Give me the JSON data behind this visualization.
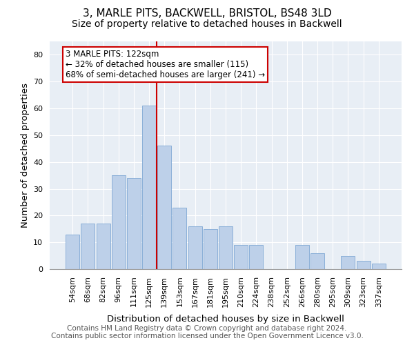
{
  "title": "3, MARLE PITS, BACKWELL, BRISTOL, BS48 3LD",
  "subtitle": "Size of property relative to detached houses in Backwell",
  "xlabel": "Distribution of detached houses by size in Backwell",
  "ylabel": "Number of detached properties",
  "categories": [
    "54sqm",
    "68sqm",
    "82sqm",
    "96sqm",
    "111sqm",
    "125sqm",
    "139sqm",
    "153sqm",
    "167sqm",
    "181sqm",
    "195sqm",
    "210sqm",
    "224sqm",
    "238sqm",
    "252sqm",
    "266sqm",
    "280sqm",
    "295sqm",
    "309sqm",
    "323sqm",
    "337sqm"
  ],
  "values": [
    13,
    17,
    17,
    35,
    34,
    61,
    46,
    23,
    16,
    15,
    16,
    9,
    9,
    0,
    0,
    9,
    6,
    0,
    5,
    3,
    2
  ],
  "bar_color": "#bdd0e9",
  "bar_edgecolor": "#7fa8d4",
  "vline_x": 5.5,
  "vline_color": "#cc0000",
  "annotation_line1": "3 MARLE PITS: 122sqm",
  "annotation_line2": "← 32% of detached houses are smaller (115)",
  "annotation_line3": "68% of semi-detached houses are larger (241) →",
  "annotation_box_color": "#cc0000",
  "footer_line1": "Contains HM Land Registry data © Crown copyright and database right 2024.",
  "footer_line2": "Contains public sector information licensed under the Open Government Licence v3.0.",
  "ylim": [
    0,
    85
  ],
  "yticks": [
    0,
    10,
    20,
    30,
    40,
    50,
    60,
    70,
    80
  ],
  "title_fontsize": 11,
  "subtitle_fontsize": 10,
  "axis_label_fontsize": 9.5,
  "tick_fontsize": 8,
  "annotation_fontsize": 8.5,
  "footer_fontsize": 7.5,
  "bg_color": "#e8eef5"
}
